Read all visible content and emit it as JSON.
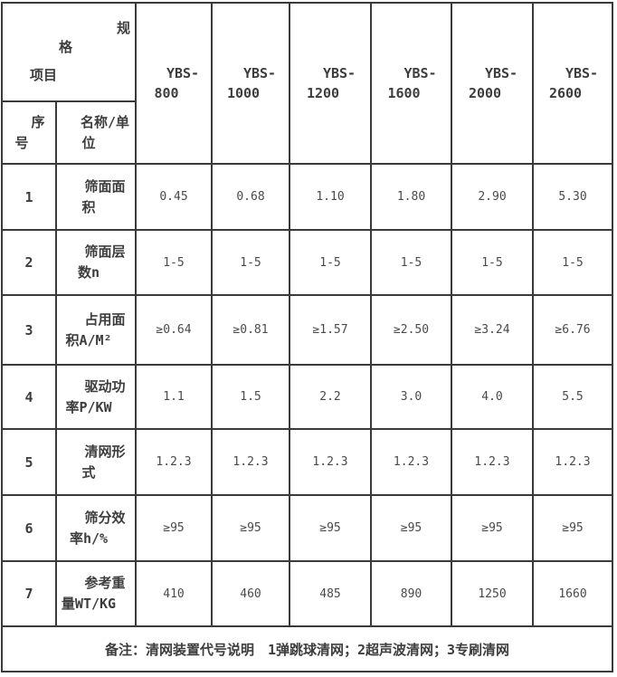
{
  "table": {
    "corner": {
      "top": "规",
      "middle": "格",
      "bottom": "项目"
    },
    "sub_header": {
      "serial_lines": [
        "序",
        "号"
      ],
      "name_lines": [
        "名称/单",
        "位"
      ]
    },
    "columns": [
      {
        "line1": "YBS-",
        "line2": "800"
      },
      {
        "line1": "YBS-",
        "line2": "1000"
      },
      {
        "line1": "YBS-",
        "line2": "1200"
      },
      {
        "line1": "YBS-",
        "line2": "1600"
      },
      {
        "line1": "YBS-",
        "line2": "2000"
      },
      {
        "line1": "YBS-",
        "line2": "2600"
      }
    ],
    "rows": [
      {
        "no": "1",
        "name_lines": [
          "筛面面",
          "积"
        ],
        "values": [
          "0.45",
          "0.68",
          "1.10",
          "1.80",
          "2.90",
          "5.30"
        ]
      },
      {
        "no": "2",
        "name_lines": [
          "筛面层",
          "数n"
        ],
        "values": [
          "1-5",
          "1-5",
          "1-5",
          "1-5",
          "1-5",
          "1-5"
        ]
      },
      {
        "no": "3",
        "name_lines": [
          "占用面",
          "积A/M²"
        ],
        "values": [
          "≥0.64",
          "≥0.81",
          "≥1.57",
          "≥2.50",
          "≥3.24",
          "≥6.76"
        ]
      },
      {
        "no": "4",
        "name_lines": [
          "驱动功",
          "率P/KW"
        ],
        "values": [
          "1.1",
          "1.5",
          "2.2",
          "3.0",
          "4.0",
          "5.5"
        ]
      },
      {
        "no": "5",
        "name_lines": [
          "清网形",
          "式"
        ],
        "values": [
          "1.2.3",
          "1.2.3",
          "1.2.3",
          "1.2.3",
          "1.2.3",
          "1.2.3"
        ]
      },
      {
        "no": "6",
        "name_lines": [
          "筛分效",
          "率h/%"
        ],
        "values": [
          "≥95",
          "≥95",
          "≥95",
          "≥95",
          "≥95",
          "≥95"
        ]
      },
      {
        "no": "7",
        "name_lines": [
          "参考重",
          "量WT/KG"
        ],
        "values": [
          "410",
          "460",
          "485",
          "890",
          "1250",
          "1660"
        ]
      }
    ],
    "footer": "备注：清网装置代号说明　1弹跳球清网；2超声波清网；3专刷清网"
  },
  "colors": {
    "border": "#3a3a3a",
    "label_text": "#3d3d3d",
    "value_text": "#4a4a4a",
    "background": "#ffffff"
  }
}
